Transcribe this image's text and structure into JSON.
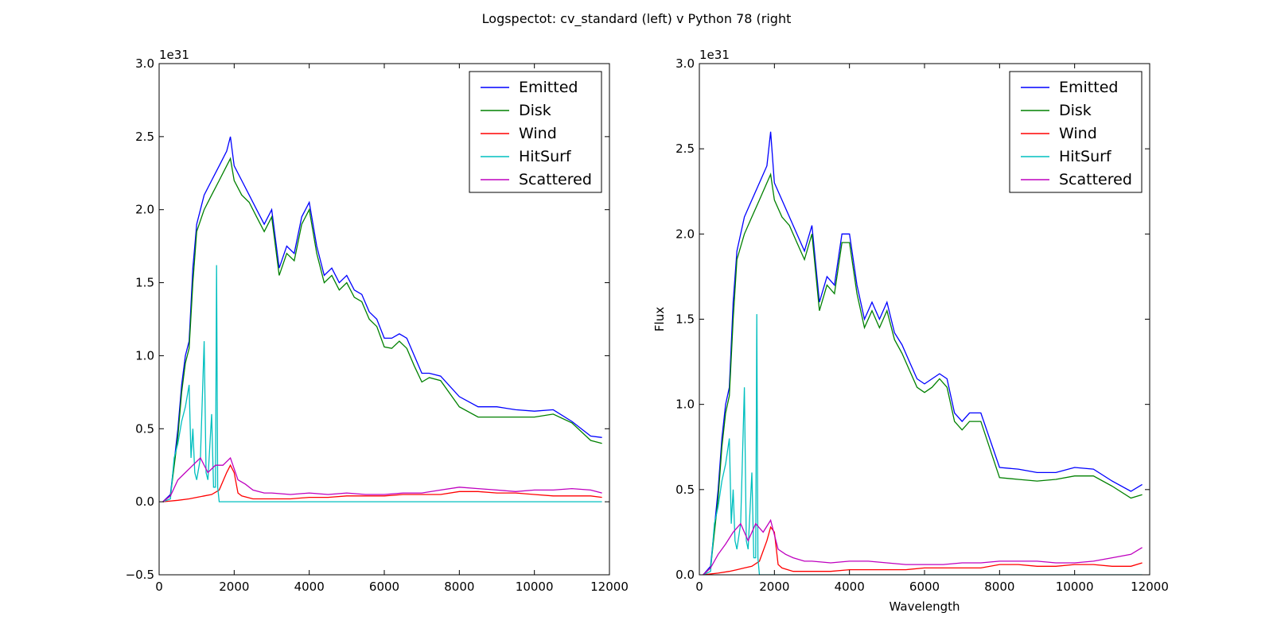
{
  "suptitle": "Logspectot: cv_standard (left) v Python 78 (right",
  "colors": {
    "Emitted": "#0000ff",
    "Disk": "#008000",
    "Wind": "#ff0000",
    "HitSurf": "#00bfbf",
    "Scattered": "#bf00bf"
  },
  "chart_data": [
    {
      "type": "line",
      "title": "",
      "xlabel": "",
      "ylabel": "",
      "offset_label": "1e31",
      "xlim": [
        0,
        12000
      ],
      "ylim": [
        -0.5,
        3.0
      ],
      "xticks": [
        0,
        2000,
        4000,
        6000,
        8000,
        10000,
        12000
      ],
      "yticks": [
        -0.5,
        0.0,
        0.5,
        1.0,
        1.5,
        2.0,
        2.5,
        3.0
      ],
      "ytick_labels": [
        "−0.5",
        "0.0",
        "0.5",
        "1.0",
        "1.5",
        "2.0",
        "2.5",
        "3.0"
      ],
      "legend_position": "upper-right",
      "grid": false,
      "series": [
        {
          "name": "Emitted",
          "x": [
            100,
            300,
            500,
            600,
            700,
            800,
            900,
            1000,
            1200,
            1400,
            1600,
            1800,
            1900,
            2000,
            2200,
            2400,
            2600,
            2800,
            3000,
            3200,
            3400,
            3600,
            3800,
            4000,
            4200,
            4400,
            4600,
            4800,
            5000,
            5200,
            5400,
            5600,
            5800,
            6000,
            6200,
            6400,
            6600,
            6800,
            7000,
            7200,
            7500,
            8000,
            8500,
            9000,
            9500,
            10000,
            10500,
            11000,
            11500,
            11800
          ],
          "y": [
            0.0,
            0.05,
            0.5,
            0.8,
            1.0,
            1.1,
            1.6,
            1.9,
            2.1,
            2.2,
            2.3,
            2.4,
            2.5,
            2.3,
            2.2,
            2.1,
            2.0,
            1.9,
            2.0,
            1.6,
            1.75,
            1.7,
            1.95,
            2.05,
            1.75,
            1.55,
            1.6,
            1.5,
            1.55,
            1.45,
            1.42,
            1.3,
            1.25,
            1.12,
            1.12,
            1.15,
            1.12,
            1.0,
            0.88,
            0.88,
            0.86,
            0.72,
            0.65,
            0.65,
            0.63,
            0.62,
            0.63,
            0.55,
            0.45,
            0.44
          ]
        },
        {
          "name": "Disk",
          "x": [
            100,
            300,
            500,
            600,
            700,
            800,
            900,
            1000,
            1200,
            1400,
            1600,
            1800,
            1900,
            2000,
            2200,
            2400,
            2600,
            2800,
            3000,
            3200,
            3400,
            3600,
            3800,
            4000,
            4200,
            4400,
            4600,
            4800,
            5000,
            5200,
            5400,
            5600,
            5800,
            6000,
            6200,
            6400,
            6600,
            6800,
            7000,
            7200,
            7500,
            8000,
            8500,
            9000,
            9500,
            10000,
            10500,
            11000,
            11500,
            11800
          ],
          "y": [
            0.0,
            0.04,
            0.45,
            0.75,
            0.95,
            1.05,
            1.5,
            1.85,
            2.0,
            2.1,
            2.2,
            2.3,
            2.35,
            2.2,
            2.1,
            2.05,
            1.95,
            1.85,
            1.95,
            1.55,
            1.7,
            1.65,
            1.9,
            2.0,
            1.7,
            1.5,
            1.55,
            1.45,
            1.5,
            1.4,
            1.37,
            1.25,
            1.2,
            1.06,
            1.05,
            1.1,
            1.05,
            0.93,
            0.82,
            0.85,
            0.83,
            0.65,
            0.58,
            0.58,
            0.58,
            0.58,
            0.6,
            0.54,
            0.42,
            0.4
          ]
        },
        {
          "name": "Wind",
          "x": [
            100,
            500,
            800,
            1000,
            1200,
            1400,
            1600,
            1800,
            1900,
            2000,
            2100,
            2200,
            2500,
            3000,
            3500,
            4000,
            4500,
            5000,
            5500,
            6000,
            6500,
            7000,
            7500,
            8000,
            8500,
            9000,
            9500,
            10000,
            10500,
            11000,
            11500,
            11800
          ],
          "y": [
            0.0,
            0.01,
            0.02,
            0.03,
            0.04,
            0.05,
            0.08,
            0.2,
            0.25,
            0.2,
            0.06,
            0.04,
            0.02,
            0.02,
            0.02,
            0.03,
            0.03,
            0.04,
            0.04,
            0.04,
            0.05,
            0.05,
            0.05,
            0.07,
            0.07,
            0.06,
            0.06,
            0.05,
            0.04,
            0.04,
            0.04,
            0.03
          ]
        },
        {
          "name": "HitSurf",
          "x": [
            100,
            300,
            400,
            500,
            600,
            700,
            800,
            850,
            900,
            950,
            1000,
            1100,
            1200,
            1250,
            1300,
            1400,
            1450,
            1500,
            1530,
            1560,
            1600,
            1700,
            1800,
            11800
          ],
          "y": [
            0.0,
            0.02,
            0.3,
            0.4,
            0.55,
            0.65,
            0.8,
            0.3,
            0.5,
            0.2,
            0.15,
            0.3,
            1.1,
            0.2,
            0.15,
            0.6,
            0.1,
            0.1,
            1.62,
            0.1,
            0.0,
            0.0,
            0.0,
            0.0
          ]
        },
        {
          "name": "Scattered",
          "x": [
            100,
            300,
            500,
            700,
            900,
            1100,
            1300,
            1500,
            1700,
            1900,
            2100,
            2300,
            2500,
            2800,
            3000,
            3500,
            4000,
            4500,
            5000,
            5500,
            6000,
            6500,
            7000,
            7500,
            8000,
            8500,
            9000,
            9500,
            10000,
            10500,
            11000,
            11500,
            11800
          ],
          "y": [
            0.0,
            0.04,
            0.15,
            0.2,
            0.25,
            0.3,
            0.2,
            0.25,
            0.25,
            0.3,
            0.15,
            0.12,
            0.08,
            0.06,
            0.06,
            0.05,
            0.06,
            0.05,
            0.06,
            0.05,
            0.05,
            0.06,
            0.06,
            0.08,
            0.1,
            0.09,
            0.08,
            0.07,
            0.08,
            0.08,
            0.09,
            0.08,
            0.06
          ]
        }
      ]
    },
    {
      "type": "line",
      "title": "",
      "xlabel": "Wavelength",
      "ylabel": "Flux",
      "offset_label": "1e31",
      "xlim": [
        0,
        12000
      ],
      "ylim": [
        0.0,
        3.0
      ],
      "xticks": [
        0,
        2000,
        4000,
        6000,
        8000,
        10000,
        12000
      ],
      "yticks": [
        0.0,
        0.5,
        1.0,
        1.5,
        2.0,
        2.5,
        3.0
      ],
      "ytick_labels": [
        "0.0",
        "0.5",
        "1.0",
        "1.5",
        "2.0",
        "2.5",
        "3.0"
      ],
      "legend_position": "upper-right",
      "grid": false,
      "series": [
        {
          "name": "Emitted",
          "x": [
            100,
            300,
            500,
            600,
            700,
            800,
            900,
            1000,
            1200,
            1400,
            1600,
            1800,
            1900,
            2000,
            2200,
            2400,
            2600,
            2800,
            3000,
            3200,
            3400,
            3600,
            3800,
            4000,
            4200,
            4400,
            4600,
            4800,
            5000,
            5200,
            5400,
            5600,
            5800,
            6000,
            6200,
            6400,
            6600,
            6800,
            7000,
            7200,
            7500,
            8000,
            8500,
            9000,
            9500,
            10000,
            10500,
            11000,
            11500,
            11800
          ],
          "y": [
            0.0,
            0.05,
            0.5,
            0.8,
            1.0,
            1.1,
            1.6,
            1.9,
            2.1,
            2.2,
            2.3,
            2.4,
            2.6,
            2.3,
            2.2,
            2.1,
            2.0,
            1.9,
            2.05,
            1.6,
            1.75,
            1.7,
            2.0,
            2.0,
            1.7,
            1.5,
            1.6,
            1.5,
            1.6,
            1.42,
            1.35,
            1.25,
            1.15,
            1.12,
            1.15,
            1.18,
            1.15,
            0.95,
            0.9,
            0.95,
            0.95,
            0.63,
            0.62,
            0.6,
            0.6,
            0.63,
            0.62,
            0.55,
            0.49,
            0.53
          ]
        },
        {
          "name": "Disk",
          "x": [
            100,
            300,
            500,
            600,
            700,
            800,
            900,
            1000,
            1200,
            1400,
            1600,
            1800,
            1900,
            2000,
            2200,
            2400,
            2600,
            2800,
            3000,
            3200,
            3400,
            3600,
            3800,
            4000,
            4200,
            4400,
            4600,
            4800,
            5000,
            5200,
            5400,
            5600,
            5800,
            6000,
            6200,
            6400,
            6600,
            6800,
            7000,
            7200,
            7500,
            8000,
            8500,
            9000,
            9500,
            10000,
            10500,
            11000,
            11500,
            11800
          ],
          "y": [
            0.0,
            0.04,
            0.45,
            0.75,
            0.95,
            1.05,
            1.5,
            1.85,
            2.0,
            2.1,
            2.2,
            2.3,
            2.35,
            2.2,
            2.1,
            2.05,
            1.95,
            1.85,
            2.0,
            1.55,
            1.7,
            1.65,
            1.95,
            1.95,
            1.65,
            1.45,
            1.55,
            1.45,
            1.55,
            1.38,
            1.3,
            1.2,
            1.1,
            1.07,
            1.1,
            1.15,
            1.1,
            0.9,
            0.85,
            0.9,
            0.9,
            0.57,
            0.56,
            0.55,
            0.56,
            0.58,
            0.58,
            0.52,
            0.45,
            0.47
          ]
        },
        {
          "name": "Wind",
          "x": [
            100,
            500,
            800,
            1000,
            1200,
            1400,
            1600,
            1800,
            1900,
            2000,
            2100,
            2200,
            2500,
            3000,
            3500,
            4000,
            4500,
            5000,
            5500,
            6000,
            6500,
            7000,
            7500,
            8000,
            8500,
            9000,
            9500,
            10000,
            10500,
            11000,
            11500,
            11800
          ],
          "y": [
            0.0,
            0.01,
            0.02,
            0.03,
            0.04,
            0.05,
            0.08,
            0.2,
            0.28,
            0.25,
            0.06,
            0.04,
            0.02,
            0.02,
            0.02,
            0.03,
            0.03,
            0.03,
            0.03,
            0.04,
            0.04,
            0.04,
            0.04,
            0.06,
            0.06,
            0.05,
            0.05,
            0.06,
            0.06,
            0.05,
            0.05,
            0.07
          ]
        },
        {
          "name": "HitSurf",
          "x": [
            100,
            300,
            400,
            500,
            600,
            700,
            800,
            850,
            900,
            950,
            1000,
            1100,
            1200,
            1250,
            1300,
            1400,
            1450,
            1500,
            1530,
            1560,
            1600,
            1700,
            1800,
            11800
          ],
          "y": [
            0.0,
            0.02,
            0.3,
            0.4,
            0.55,
            0.65,
            0.8,
            0.3,
            0.5,
            0.2,
            0.15,
            0.3,
            1.1,
            0.2,
            0.15,
            0.6,
            0.1,
            0.1,
            1.53,
            0.1,
            0.0,
            0.0,
            0.0,
            0.0
          ]
        },
        {
          "name": "Scattered",
          "x": [
            100,
            300,
            500,
            700,
            900,
            1100,
            1300,
            1500,
            1700,
            1900,
            2100,
            2300,
            2500,
            2800,
            3000,
            3500,
            4000,
            4500,
            5000,
            5500,
            6000,
            6500,
            7000,
            7500,
            8000,
            8500,
            9000,
            9500,
            10000,
            10500,
            11000,
            11500,
            11800
          ],
          "y": [
            0.0,
            0.04,
            0.12,
            0.18,
            0.25,
            0.3,
            0.2,
            0.3,
            0.25,
            0.32,
            0.15,
            0.12,
            0.1,
            0.08,
            0.08,
            0.07,
            0.08,
            0.08,
            0.07,
            0.06,
            0.06,
            0.06,
            0.07,
            0.07,
            0.08,
            0.08,
            0.08,
            0.07,
            0.07,
            0.08,
            0.1,
            0.12,
            0.16
          ]
        }
      ]
    }
  ]
}
